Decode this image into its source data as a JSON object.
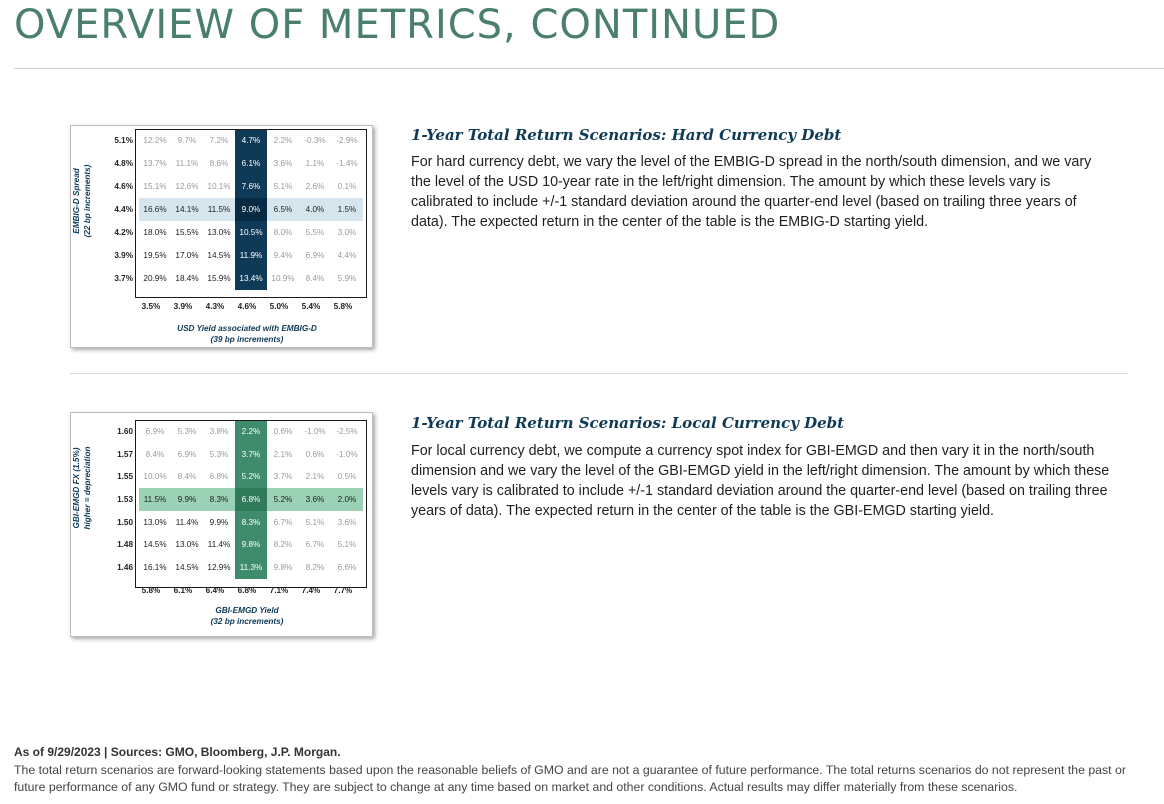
{
  "page_title": "OVERVIEW OF METRICS, CONTINUED",
  "hard": {
    "heading": "1-Year Total Return Scenarios: Hard Currency Debt",
    "description": "For hard currency debt, we vary the level of the EMBIG-D spread in the north/south dimension, and we vary the level of the USD 10-year rate in the left/right dimension. The amount by which these levels vary is calibrated to include +/-1 standard deviation around the quarter-end level (based on trailing three years of data). The expected return in the center of the table is the EMBIG-D starting yield.",
    "ylabel_line1": "EMBIG-D Spread",
    "ylabel_line2": "(22 bp increments)",
    "xlabel_line1": "USD Yield associated with EMBIG-D",
    "xlabel_line2": "(39 bp increments)",
    "row_headers": [
      "5.1%",
      "4.8%",
      "4.6%",
      "4.4%",
      "4.2%",
      "3.9%",
      "3.7%"
    ],
    "col_headers": [
      "3.5%",
      "3.9%",
      "4.3%",
      "4.6%",
      "5.0%",
      "5.4%",
      "5.8%"
    ],
    "rows": [
      [
        "12.2%",
        "9.7%",
        "7.2%",
        "4.7%",
        "2.2%",
        "-0.3%",
        "-2.9%"
      ],
      [
        "13.7%",
        "11.1%",
        "8.6%",
        "6.1%",
        "3.6%",
        "1.1%",
        "-1.4%"
      ],
      [
        "15.1%",
        "12.6%",
        "10.1%",
        "7.6%",
        "5.1%",
        "2.6%",
        "0.1%"
      ],
      [
        "16.6%",
        "14.1%",
        "11.5%",
        "9.0%",
        "6.5%",
        "4.0%",
        "1.5%"
      ],
      [
        "18.0%",
        "15.5%",
        "13.0%",
        "10.5%",
        "8.0%",
        "5.5%",
        "3.0%"
      ],
      [
        "19.5%",
        "17.0%",
        "14.5%",
        "11.9%",
        "9.4%",
        "6.9%",
        "4.4%"
      ],
      [
        "20.9%",
        "18.4%",
        "15.9%",
        "13.4%",
        "10.9%",
        "8.4%",
        "5.9%"
      ]
    ],
    "highlight_color": "#d7e6ee",
    "column_color": "#0e3a57"
  },
  "local": {
    "heading": "1-Year Total Return Scenarios: Local Currency Debt",
    "description": "For local currency debt, we compute a currency spot index for GBI-EMGD and then vary it in the north/south dimension and we vary the level of the GBI-EMGD yield in the left/right dimension. The amount by which these levels vary is calibrated to include +/-1 standard deviation around the quarter-end level (based on trailing three years of data). The expected return in the center of the table is the GBI-EMGD starting yield.",
    "ylabel_line1": "GBI-EMGD FX (1.5%)",
    "ylabel_line2": "higher = depreciation",
    "xlabel_line1": "GBI-EMGD Yield",
    "xlabel_line2": "(32 bp increments)",
    "row_headers": [
      "1.60",
      "1.57",
      "1.55",
      "1.53",
      "1.50",
      "1.48",
      "1.46"
    ],
    "col_headers": [
      "5.8%",
      "6.1%",
      "6.4%",
      "6.8%",
      "7.1%",
      "7.4%",
      "7.7%"
    ],
    "rows": [
      [
        "6.9%",
        "5.3%",
        "3.8%",
        "2.2%",
        "0.6%",
        "-1.0%",
        "-2.5%"
      ],
      [
        "8.4%",
        "6.9%",
        "5.3%",
        "3.7%",
        "2.1%",
        "0.6%",
        "-1.0%"
      ],
      [
        "10.0%",
        "8.4%",
        "6.8%",
        "5.2%",
        "3.7%",
        "2.1%",
        "0.5%"
      ],
      [
        "11.5%",
        "9.9%",
        "8.3%",
        "6.8%",
        "5.2%",
        "3.6%",
        "2.0%"
      ],
      [
        "13.0%",
        "11.4%",
        "9.9%",
        "8.3%",
        "6.7%",
        "5.1%",
        "3.6%"
      ],
      [
        "14.5%",
        "13.0%",
        "11.4%",
        "9.8%",
        "8.2%",
        "6.7%",
        "5.1%"
      ],
      [
        "16.1%",
        "14.5%",
        "12.9%",
        "11.3%",
        "9.8%",
        "8.2%",
        "6.6%"
      ]
    ],
    "highlight_color": "#9bd1b4",
    "column_color": "#3e8c6b"
  },
  "footer": {
    "source": "As of 9/29/2023 | Sources: GMO, Bloomberg, J.P. Morgan.",
    "disclaimer": "The total return scenarios are forward-looking statements based upon the reasonable beliefs of GMO and are not a guarantee of future performance. The total returns scenarios do not represent the past or future performance of any GMO fund or strategy. They are subject to change at any time based on market and other conditions. Actual results may differ materially from these scenarios."
  }
}
